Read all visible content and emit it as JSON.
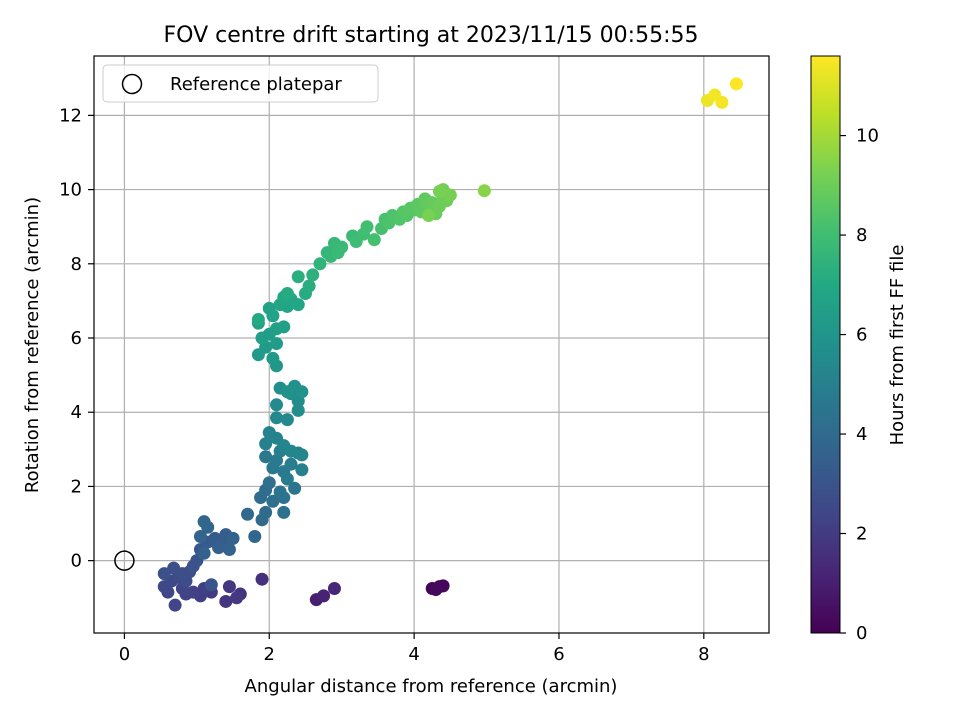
{
  "chart_data": {
    "type": "scatter",
    "title": "FOV centre drift starting at 2023/11/15 00:55:55",
    "xlabel": "Angular distance from reference (arcmin)",
    "ylabel": "Rotation from reference (arcmin)",
    "xlim": [
      -0.42,
      8.9
    ],
    "ylim": [
      -1.95,
      13.6
    ],
    "xticks": [
      0,
      2,
      4,
      6,
      8
    ],
    "yticks": [
      0,
      2,
      4,
      6,
      8,
      10,
      12
    ],
    "grid": true,
    "legend": {
      "placement": "upper-left",
      "entries": [
        "Reference platepar"
      ]
    },
    "reference_point": {
      "x": 0,
      "y": 0,
      "label": "Reference platepar"
    },
    "colorbar": {
      "label": "Hours from first FF file",
      "colormap": "viridis",
      "range": [
        0,
        11.6
      ],
      "ticks": [
        0,
        2,
        4,
        6,
        8,
        10
      ]
    },
    "points": [
      {
        "x": 4.25,
        "y": -0.75,
        "t": 0.1
      },
      {
        "x": 4.35,
        "y": -0.7,
        "t": 0.15
      },
      {
        "x": 4.4,
        "y": -0.68,
        "t": 0.2
      },
      {
        "x": 4.3,
        "y": -0.78,
        "t": 0.25
      },
      {
        "x": 2.65,
        "y": -1.05,
        "t": 1.0
      },
      {
        "x": 2.75,
        "y": -0.95,
        "t": 1.1
      },
      {
        "x": 2.9,
        "y": -0.75,
        "t": 1.2
      },
      {
        "x": 1.9,
        "y": -0.5,
        "t": 1.6
      },
      {
        "x": 1.6,
        "y": -0.9,
        "t": 1.7
      },
      {
        "x": 1.4,
        "y": -1.1,
        "t": 1.8
      },
      {
        "x": 1.45,
        "y": -0.7,
        "t": 1.85
      },
      {
        "x": 1.55,
        "y": -1.0,
        "t": 1.9
      },
      {
        "x": 1.2,
        "y": -0.85,
        "t": 2.0
      },
      {
        "x": 1.05,
        "y": -0.95,
        "t": 2.1
      },
      {
        "x": 1.1,
        "y": -0.75,
        "t": 2.15
      },
      {
        "x": 0.95,
        "y": -0.85,
        "t": 2.2
      },
      {
        "x": 0.85,
        "y": -0.9,
        "t": 2.3
      },
      {
        "x": 0.8,
        "y": -0.75,
        "t": 2.35
      },
      {
        "x": 0.7,
        "y": -1.2,
        "t": 2.4
      },
      {
        "x": 0.6,
        "y": -0.85,
        "t": 2.45
      },
      {
        "x": 0.55,
        "y": -0.7,
        "t": 2.5
      },
      {
        "x": 0.65,
        "y": -0.55,
        "t": 2.55
      },
      {
        "x": 0.75,
        "y": -0.45,
        "t": 2.6
      },
      {
        "x": 0.85,
        "y": -0.55,
        "t": 2.65
      },
      {
        "x": 0.9,
        "y": -0.3,
        "t": 2.7
      },
      {
        "x": 0.8,
        "y": -0.35,
        "t": 2.75
      },
      {
        "x": 0.68,
        "y": -0.2,
        "t": 2.8
      },
      {
        "x": 0.55,
        "y": -0.35,
        "t": 2.85
      },
      {
        "x": 0.95,
        "y": -0.15,
        "t": 2.9
      },
      {
        "x": 1.0,
        "y": 0.0,
        "t": 3.0
      },
      {
        "x": 1.2,
        "y": -0.65,
        "t": 3.05
      },
      {
        "x": 1.05,
        "y": 0.3,
        "t": 3.2
      },
      {
        "x": 1.15,
        "y": 0.5,
        "t": 3.3
      },
      {
        "x": 1.25,
        "y": 0.6,
        "t": 3.35
      },
      {
        "x": 1.35,
        "y": 0.45,
        "t": 3.4
      },
      {
        "x": 1.4,
        "y": 0.7,
        "t": 3.45
      },
      {
        "x": 1.3,
        "y": 0.35,
        "t": 3.5
      },
      {
        "x": 1.1,
        "y": 0.2,
        "t": 3.55
      },
      {
        "x": 1.45,
        "y": 0.3,
        "t": 3.6
      },
      {
        "x": 1.5,
        "y": 0.6,
        "t": 3.65
      },
      {
        "x": 1.05,
        "y": 0.65,
        "t": 3.7
      },
      {
        "x": 1.15,
        "y": 0.9,
        "t": 3.75
      },
      {
        "x": 1.1,
        "y": 1.05,
        "t": 3.8
      },
      {
        "x": 1.8,
        "y": 0.65,
        "t": 3.85
      },
      {
        "x": 1.7,
        "y": 1.25,
        "t": 3.9
      },
      {
        "x": 1.9,
        "y": 1.1,
        "t": 4.0
      },
      {
        "x": 1.95,
        "y": 1.3,
        "t": 4.05
      },
      {
        "x": 1.88,
        "y": 1.7,
        "t": 4.1
      },
      {
        "x": 1.95,
        "y": 1.9,
        "t": 4.15
      },
      {
        "x": 2.05,
        "y": 1.6,
        "t": 4.2
      },
      {
        "x": 2.0,
        "y": 2.1,
        "t": 4.25
      },
      {
        "x": 2.2,
        "y": 1.3,
        "t": 4.3
      },
      {
        "x": 2.2,
        "y": 1.7,
        "t": 4.35
      },
      {
        "x": 2.15,
        "y": 1.85,
        "t": 4.4
      },
      {
        "x": 2.35,
        "y": 1.95,
        "t": 4.5
      },
      {
        "x": 1.95,
        "y": 2.8,
        "t": 4.6
      },
      {
        "x": 2.05,
        "y": 2.5,
        "t": 4.65
      },
      {
        "x": 2.1,
        "y": 2.7,
        "t": 4.7
      },
      {
        "x": 2.2,
        "y": 2.4,
        "t": 4.75
      },
      {
        "x": 2.25,
        "y": 2.2,
        "t": 4.8
      },
      {
        "x": 2.3,
        "y": 2.6,
        "t": 4.85
      },
      {
        "x": 2.15,
        "y": 2.95,
        "t": 4.9
      },
      {
        "x": 2.4,
        "y": 2.9,
        "t": 4.95
      },
      {
        "x": 2.45,
        "y": 2.45,
        "t": 5.0
      },
      {
        "x": 1.95,
        "y": 3.15,
        "t": 5.05
      },
      {
        "x": 2.0,
        "y": 3.45,
        "t": 5.1
      },
      {
        "x": 2.1,
        "y": 3.3,
        "t": 5.15
      },
      {
        "x": 2.2,
        "y": 3.1,
        "t": 5.2
      },
      {
        "x": 2.3,
        "y": 2.95,
        "t": 5.25
      },
      {
        "x": 2.45,
        "y": 2.85,
        "t": 5.3
      },
      {
        "x": 2.25,
        "y": 3.8,
        "t": 5.4
      },
      {
        "x": 2.1,
        "y": 3.85,
        "t": 5.45
      },
      {
        "x": 2.1,
        "y": 4.2,
        "t": 5.5
      },
      {
        "x": 2.4,
        "y": 4.05,
        "t": 5.55
      },
      {
        "x": 2.4,
        "y": 4.3,
        "t": 5.6
      },
      {
        "x": 2.15,
        "y": 4.65,
        "t": 5.7
      },
      {
        "x": 2.3,
        "y": 4.5,
        "t": 5.75
      },
      {
        "x": 2.35,
        "y": 4.7,
        "t": 5.8
      },
      {
        "x": 2.45,
        "y": 4.55,
        "t": 5.85
      },
      {
        "x": 2.25,
        "y": 4.55,
        "t": 5.9
      },
      {
        "x": 2.1,
        "y": 5.25,
        "t": 6.1
      },
      {
        "x": 2.05,
        "y": 5.45,
        "t": 6.2
      },
      {
        "x": 1.85,
        "y": 5.55,
        "t": 6.25
      },
      {
        "x": 1.95,
        "y": 5.75,
        "t": 6.3
      },
      {
        "x": 2.1,
        "y": 5.85,
        "t": 6.35
      },
      {
        "x": 1.9,
        "y": 6.0,
        "t": 6.4
      },
      {
        "x": 2.0,
        "y": 6.1,
        "t": 6.45
      },
      {
        "x": 2.1,
        "y": 6.25,
        "t": 6.5
      },
      {
        "x": 2.2,
        "y": 6.3,
        "t": 6.55
      },
      {
        "x": 1.85,
        "y": 6.4,
        "t": 6.6
      },
      {
        "x": 2.05,
        "y": 6.6,
        "t": 6.65
      },
      {
        "x": 2.0,
        "y": 6.8,
        "t": 6.7
      },
      {
        "x": 2.15,
        "y": 6.9,
        "t": 6.75
      },
      {
        "x": 2.25,
        "y": 6.85,
        "t": 6.8
      },
      {
        "x": 2.3,
        "y": 7.05,
        "t": 6.85
      },
      {
        "x": 2.4,
        "y": 6.9,
        "t": 6.9
      },
      {
        "x": 2.2,
        "y": 7.1,
        "t": 6.95
      },
      {
        "x": 1.85,
        "y": 6.5,
        "t": 7.0
      },
      {
        "x": 2.25,
        "y": 7.2,
        "t": 7.05
      },
      {
        "x": 2.5,
        "y": 7.2,
        "t": 7.1
      },
      {
        "x": 2.55,
        "y": 7.4,
        "t": 7.2
      },
      {
        "x": 2.4,
        "y": 7.65,
        "t": 7.3
      },
      {
        "x": 2.6,
        "y": 7.7,
        "t": 7.35
      },
      {
        "x": 2.7,
        "y": 8.0,
        "t": 7.5
      },
      {
        "x": 2.8,
        "y": 8.3,
        "t": 7.6
      },
      {
        "x": 2.85,
        "y": 8.2,
        "t": 7.65
      },
      {
        "x": 2.9,
        "y": 8.55,
        "t": 7.7
      },
      {
        "x": 3.0,
        "y": 8.45,
        "t": 7.75
      },
      {
        "x": 2.95,
        "y": 8.3,
        "t": 7.8
      },
      {
        "x": 3.15,
        "y": 8.75,
        "t": 7.85
      },
      {
        "x": 3.2,
        "y": 8.6,
        "t": 7.9
      },
      {
        "x": 3.3,
        "y": 8.8,
        "t": 8.0
      },
      {
        "x": 3.35,
        "y": 9.0,
        "t": 8.05
      },
      {
        "x": 3.45,
        "y": 8.65,
        "t": 8.1
      },
      {
        "x": 3.55,
        "y": 8.95,
        "t": 8.15
      },
      {
        "x": 3.6,
        "y": 9.2,
        "t": 8.2
      },
      {
        "x": 3.7,
        "y": 9.3,
        "t": 8.25
      },
      {
        "x": 3.65,
        "y": 9.1,
        "t": 8.3
      },
      {
        "x": 3.75,
        "y": 9.25,
        "t": 8.35
      },
      {
        "x": 3.8,
        "y": 9.2,
        "t": 8.4
      },
      {
        "x": 3.9,
        "y": 9.3,
        "t": 8.45
      },
      {
        "x": 3.85,
        "y": 9.4,
        "t": 8.5
      },
      {
        "x": 3.95,
        "y": 9.5,
        "t": 8.55
      },
      {
        "x": 4.0,
        "y": 9.45,
        "t": 8.6
      },
      {
        "x": 4.05,
        "y": 9.6,
        "t": 8.65
      },
      {
        "x": 4.1,
        "y": 9.4,
        "t": 8.7
      },
      {
        "x": 4.15,
        "y": 9.75,
        "t": 8.75
      },
      {
        "x": 4.2,
        "y": 9.55,
        "t": 8.8
      },
      {
        "x": 4.25,
        "y": 9.65,
        "t": 8.85
      },
      {
        "x": 4.3,
        "y": 9.35,
        "t": 8.9
      },
      {
        "x": 4.35,
        "y": 9.55,
        "t": 8.95
      },
      {
        "x": 4.4,
        "y": 9.8,
        "t": 9.0
      },
      {
        "x": 4.45,
        "y": 9.7,
        "t": 9.05
      },
      {
        "x": 4.4,
        "y": 10.0,
        "t": 9.1
      },
      {
        "x": 4.5,
        "y": 9.85,
        "t": 9.15
      },
      {
        "x": 4.35,
        "y": 9.95,
        "t": 9.2
      },
      {
        "x": 4.2,
        "y": 9.3,
        "t": 9.25
      },
      {
        "x": 4.97,
        "y": 9.97,
        "t": 9.5
      },
      {
        "x": 8.05,
        "y": 12.4,
        "t": 11.3
      },
      {
        "x": 8.15,
        "y": 12.55,
        "t": 11.4
      },
      {
        "x": 8.25,
        "y": 12.35,
        "t": 11.45
      },
      {
        "x": 8.45,
        "y": 12.85,
        "t": 11.6
      }
    ]
  }
}
